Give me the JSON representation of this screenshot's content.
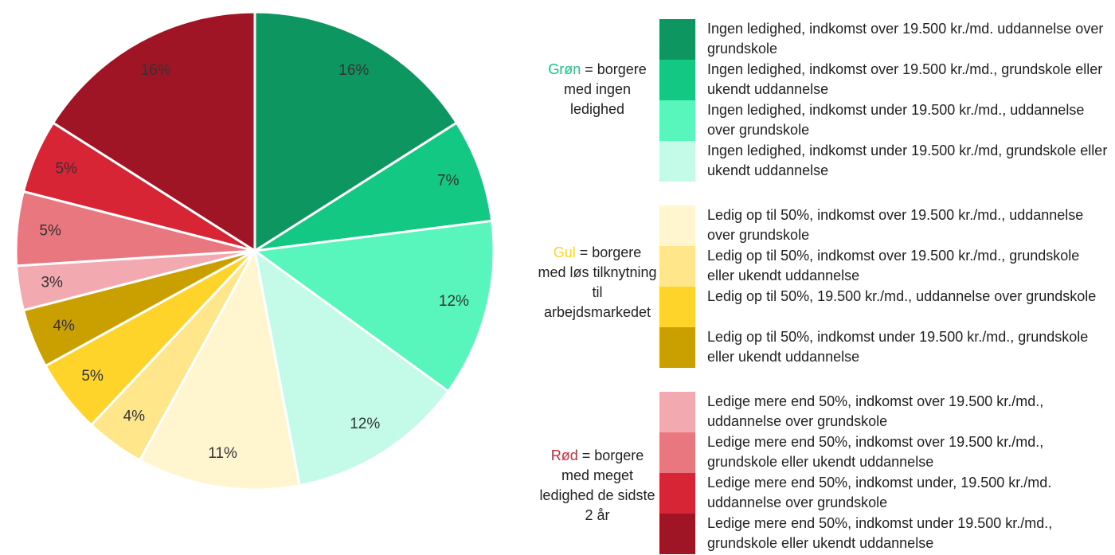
{
  "chart_data": {
    "type": "pie",
    "categories": [
      "Ingen ledighed, indkomst over 19.500 kr./md. uddannelse over grundskole",
      "Ingen ledighed, indkomst over 19.500 kr./md., grundskole eller ukendt uddannelse",
      "Ingen ledighed, indkomst under 19.500 kr./md., uddannelse over grundskole",
      "Ingen ledighed, indkomst under 19.500 kr./md, grundskole eller ukendt uddannelse",
      "Ledig op til 50%, indkomst over 19.500 kr./md., uddannelse over grundskole",
      "Ledig op til 50%, indkomst over 19.500 kr./md., grundskole eller ukendt uddannelse",
      "Ledig op til 50%, 19.500 kr./md., uddannelse over grundskole",
      "Ledig op til 50%, indkomst under 19.500 kr./md., grundskole eller ukendt uddannelse",
      "Ledige mere end 50%, indkomst over 19.500 kr./md., uddannelse over grundskole",
      "Ledige mere end 50%, indkomst over 19.500 kr./md., grundskole eller ukendt uddannelse",
      "Ledige mere end 50%, indkomst under, 19.500 kr./md. uddannelse over grundskole",
      "Ledige mere end 50%, indkomst under 19.500 kr./md., grundskole eller ukendt uddannelse"
    ],
    "values": [
      16,
      7,
      12,
      12,
      11,
      4,
      5,
      4,
      3,
      5,
      5,
      16
    ],
    "value_labels": [
      "16%",
      "7%",
      "12%",
      "12%",
      "11%",
      "4%",
      "5%",
      "4%",
      "3%",
      "5%",
      "5%",
      "16%"
    ],
    "colors": [
      "#0e9660",
      "#12c883",
      "#58f5bd",
      "#c4fbe8",
      "#fff6cf",
      "#ffe68a",
      "#ffd42a",
      "#c9a000",
      "#f2a9b0",
      "#e97780",
      "#d82535",
      "#a01525"
    ],
    "groups": [
      {
        "name": "Grøn",
        "label": "= borgere med ingen ledighed",
        "color": "#12c883"
      },
      {
        "name": "Gul",
        "label": "= borgere med løs tilknytning til arbejdsmarkedet",
        "color": "#ffd42a"
      },
      {
        "name": "Rød",
        "label": "= borgere med meget ledighed de sidste 2 år",
        "color": "#d82535"
      }
    ]
  }
}
